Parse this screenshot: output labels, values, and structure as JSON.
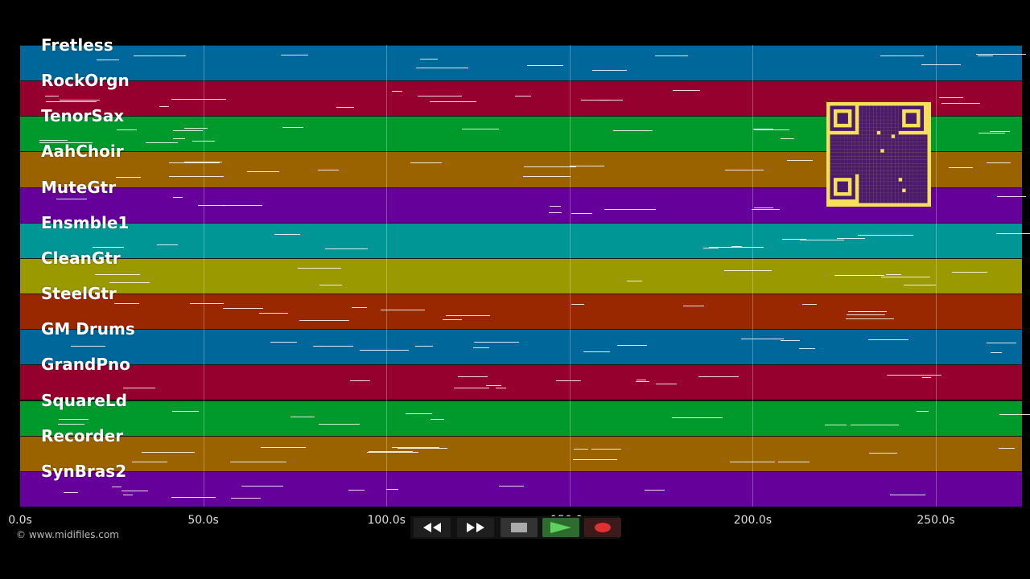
{
  "tracks": [
    {
      "name": "Fretless",
      "color": "#00679b"
    },
    {
      "name": "RockOrgn",
      "color": "#96002f"
    },
    {
      "name": "TenorSax",
      "color": "#009a2c"
    },
    {
      "name": "AahChoir",
      "color": "#9a6300"
    },
    {
      "name": "MuteGtr",
      "color": "#65009a"
    },
    {
      "name": "Ensmble1",
      "color": "#009696"
    },
    {
      "name": "CleanGtr",
      "color": "#9a9a00"
    },
    {
      "name": "SteelGtr",
      "color": "#992800"
    },
    {
      "name": "GM Drums",
      "color": "#00679b"
    },
    {
      "name": "GrandPno",
      "color": "#96002f"
    },
    {
      "name": "SquareLd",
      "color": "#009a2c"
    },
    {
      "name": "Recorder",
      "color": "#9a6300"
    },
    {
      "name": "SynBras2",
      "color": "#65009a"
    }
  ],
  "timeline": {
    "ticks": [
      "0.0s",
      "50.0s",
      "100.0s",
      "150.0s",
      "200.0s",
      "250.0s"
    ],
    "tick_seconds": [
      0,
      50,
      100,
      150,
      200,
      250
    ],
    "end_seconds": 273.5
  },
  "copyright": "© www.midifiles.com",
  "transport": {
    "rewind_icon": "rewind-icon",
    "forward_icon": "fast-forward-icon",
    "stop_icon": "stop-icon",
    "play_icon": "play-icon",
    "record_icon": "record-icon"
  },
  "qr_icon": "qr-code-icon"
}
